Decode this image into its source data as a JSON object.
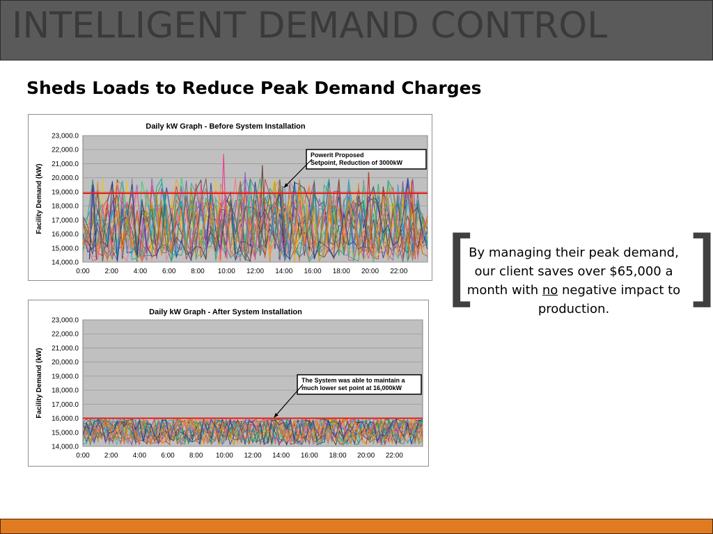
{
  "header": {
    "title": "INTELLIGENT DEMAND CONTROL"
  },
  "subtitle": "Sheds Loads to Reduce Peak Demand Charges",
  "quote": {
    "open_bracket": "[",
    "close_bracket": "]",
    "text_before": "By managing their peak demand, our client saves over $65,000 a month with ",
    "emphasis": "no",
    "text_after": " negative impact to production."
  },
  "colors": {
    "header_bg": "#5a5a5a",
    "header_text": "#3a3a3a",
    "plot_bg": "#c0c0c0",
    "setpoint_line": "#e8201c",
    "footer": "#e07b22"
  },
  "chart_data": [
    {
      "type": "line",
      "title": "Daily kW Graph - Before System Installation",
      "ylabel": "Facility Demand (kW)",
      "xlabel": "",
      "x_ticks": [
        "0:00",
        "2:00",
        "4:00",
        "6:00",
        "8:00",
        "10:00",
        "12:00",
        "14:00",
        "16:00",
        "18:00",
        "20:00",
        "22:00"
      ],
      "y_ticks": [
        "14,000.0",
        "15,000.0",
        "16,000.0",
        "17,000.0",
        "18,000.0",
        "19,000.0",
        "20,000.0",
        "21,000.0",
        "22,000.0",
        "23,000.0"
      ],
      "ylim": [
        14000,
        23000
      ],
      "xlim": [
        0,
        24
      ],
      "grid": true,
      "setpoint": 18900,
      "series_style": "many overlapping daily demand traces in assorted colors",
      "annotation": {
        "text_lines": [
          "Powerit Proposed",
          "Setpoint, Reduction of 3000kW"
        ],
        "arrow_target": {
          "x": 14.0,
          "y": 19300
        }
      },
      "peak_values": [
        {
          "x": 0.7,
          "y": 19500
        },
        {
          "x": 4.2,
          "y": 17200
        },
        {
          "x": 5.7,
          "y": 19000
        },
        {
          "x": 9.8,
          "y": 21700
        },
        {
          "x": 11.3,
          "y": 20400
        },
        {
          "x": 12.5,
          "y": 20900
        },
        {
          "x": 13.9,
          "y": 19400
        },
        {
          "x": 17.2,
          "y": 19300
        },
        {
          "x": 19.9,
          "y": 20400
        },
        {
          "x": 22.9,
          "y": 19800
        }
      ]
    },
    {
      "type": "line",
      "title": "Daily kW Graph - After System Installation",
      "ylabel": "Facility Demand (kW)",
      "xlabel": "",
      "x_ticks": [
        "0:00",
        "2:00",
        "4:00",
        "6:00",
        "8:00",
        "10:00",
        "12:00",
        "14:00",
        "16:00",
        "18:00",
        "20:00",
        "22:00"
      ],
      "y_ticks": [
        "14,000.0",
        "15,000.0",
        "16,000.0",
        "17,000.0",
        "18,000.0",
        "19,000.0",
        "20,000.0",
        "21,000.0",
        "22,000.0",
        "23,000.0"
      ],
      "ylim": [
        14000,
        23000
      ],
      "xlim": [
        0,
        24
      ],
      "grid": true,
      "setpoint": 16000,
      "series_style": "many overlapping daily demand traces in assorted colors, all kept at or below 16,000 kW",
      "annotation": {
        "text_lines": [
          "The System was able to maintain a",
          "much lower set point at 16,000kW"
        ],
        "arrow_target": {
          "x": 13.5,
          "y": 16050
        }
      }
    }
  ]
}
